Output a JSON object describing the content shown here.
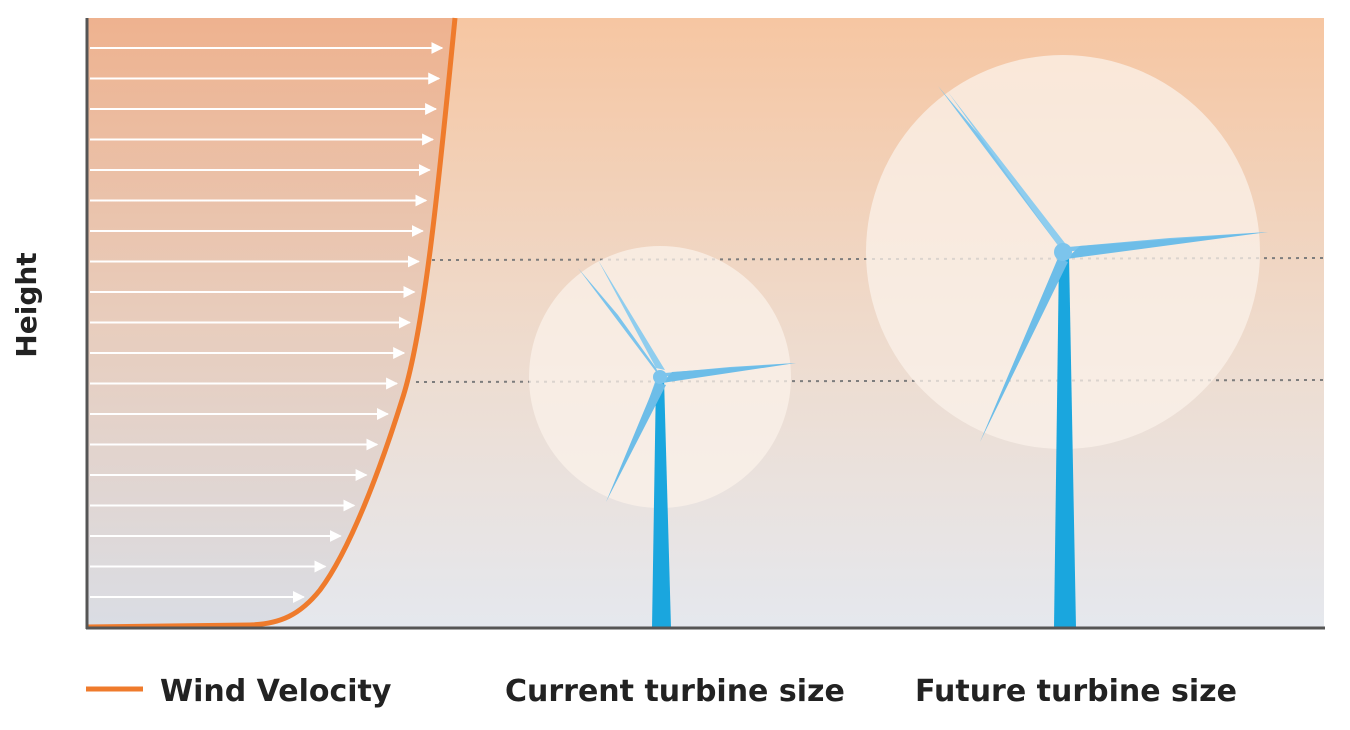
{
  "axis": {
    "y_label": "Height"
  },
  "legend": {
    "wind_velocity": "Wind Velocity",
    "current_turbine": "Current turbine size",
    "future_turbine": "Future turbine size"
  },
  "colors": {
    "sky_top": "#f7c9a5",
    "sky_bottom": "#e6e9ee",
    "velocity_curve": "#ef7b2c",
    "tower": "#1aa6de",
    "blade": "#7cc4ec",
    "rotor_disc": "#fbf1ea",
    "arrow": "#ffffff",
    "axis": "#555555"
  },
  "wind_arrow_count": 19
}
